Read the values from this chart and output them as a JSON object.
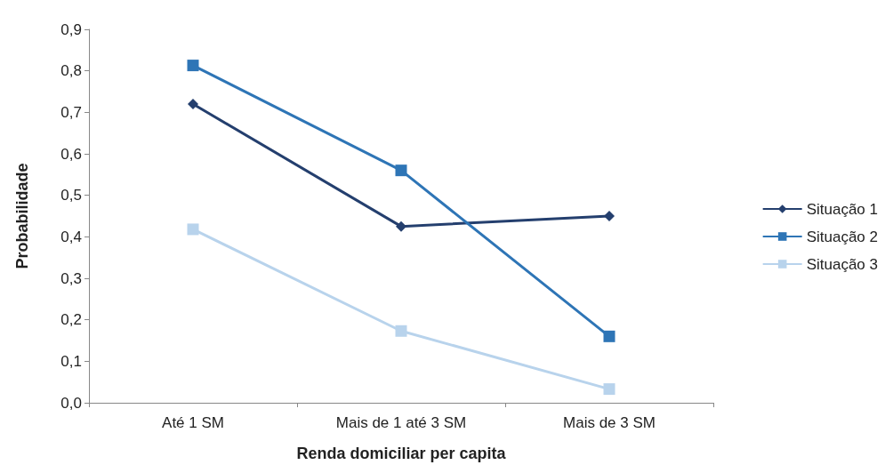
{
  "chart_data": {
    "type": "line",
    "xlabel": "Renda domiciliar per capita",
    "ylabel": "Probabilidade",
    "categories": [
      "Até 1 SM",
      "Mais de 1 até 3 SM",
      "Mais de 3 SM"
    ],
    "series": [
      {
        "name": "Situação 1",
        "color": "#243f6e",
        "marker": "diamond",
        "values": [
          0.72,
          0.425,
          0.45
        ]
      },
      {
        "name": "Situação 2",
        "color": "#2e75b6",
        "marker": "square",
        "values": [
          0.813,
          0.56,
          0.16
        ]
      },
      {
        "name": "Situação 3",
        "color": "#b8d3ec",
        "marker": "square",
        "values": [
          0.418,
          0.173,
          0.033
        ]
      }
    ],
    "ylim": [
      0,
      0.9
    ],
    "yticks": [
      {
        "value": 0,
        "label": "0,0"
      },
      {
        "value": 0.1,
        "label": "0,1"
      },
      {
        "value": 0.2,
        "label": "0,2"
      },
      {
        "value": 0.3,
        "label": "0,3"
      },
      {
        "value": 0.4,
        "label": "0,4"
      },
      {
        "value": 0.5,
        "label": "0,5"
      },
      {
        "value": 0.6,
        "label": "0,6"
      },
      {
        "value": 0.7,
        "label": "0,7"
      },
      {
        "value": 0.8,
        "label": "0,8"
      },
      {
        "value": 0.9,
        "label": "0,9"
      }
    ],
    "grid": false,
    "legend": "right",
    "line_style": "solid"
  }
}
